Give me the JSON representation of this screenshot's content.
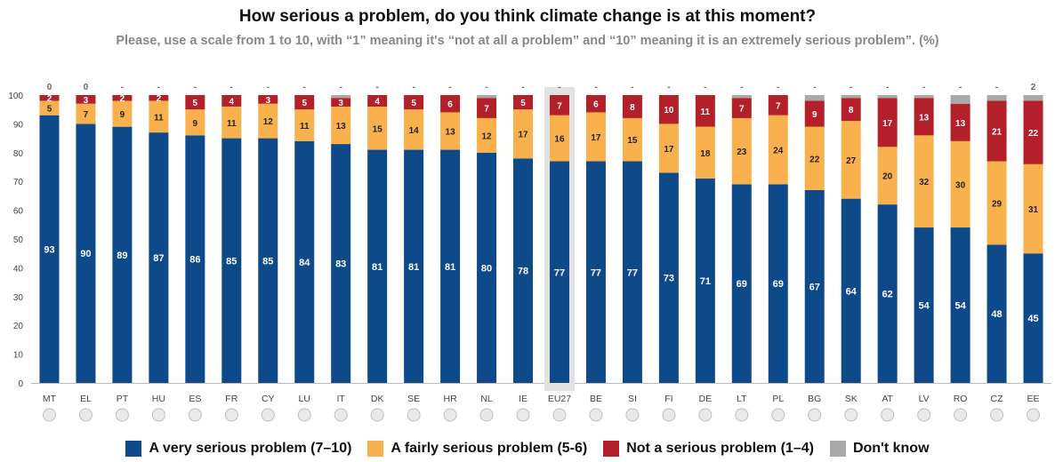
{
  "title": "How serious a problem, do you think climate change is at this moment?",
  "subtitle": "Please, use a scale from 1 to 10, with “1” meaning it's “not at all a problem” and “10” meaning it is an extremely serious problem”. (%)",
  "colors": {
    "very_serious": "#0e4a8a",
    "fairly_serious": "#f9b14e",
    "not_serious": "#b3202a",
    "dont_know": "#a9a9a9",
    "highlight": "#e2e2e2"
  },
  "legend": [
    {
      "label": "A very serious problem (7–10)",
      "color": "#0e4a8a"
    },
    {
      "label": "A fairly serious problem (5-6)",
      "color": "#f9b14e"
    },
    {
      "label": "Not a serious problem (1–4)",
      "color": "#b3202a"
    },
    {
      "label": "Don't know",
      "color": "#a9a9a9"
    }
  ],
  "chart_data": {
    "type": "bar",
    "stacked": true,
    "title": "How serious a problem, do you think climate change is at this moment?",
    "ylim": [
      0,
      100
    ],
    "yticks": [
      0,
      10,
      20,
      30,
      40,
      50,
      60,
      70,
      80,
      90,
      100
    ],
    "grid": false,
    "legend_position": "bottom",
    "highlight_category": "EU27",
    "categories": [
      "MT",
      "EL",
      "PT",
      "HU",
      "ES",
      "FR",
      "CY",
      "LU",
      "IT",
      "DK",
      "SE",
      "HR",
      "NL",
      "IE",
      "EU27",
      "BE",
      "SI",
      "FI",
      "DE",
      "LT",
      "PL",
      "BG",
      "SK",
      "AT",
      "LV",
      "RO",
      "CZ",
      "EE"
    ],
    "series": [
      {
        "name": "A very serious problem (7–10)",
        "values": [
          93,
          90,
          89,
          87,
          86,
          85,
          85,
          84,
          83,
          81,
          81,
          81,
          80,
          78,
          77,
          77,
          77,
          73,
          71,
          69,
          69,
          67,
          64,
          62,
          54,
          54,
          48,
          45
        ]
      },
      {
        "name": "A fairly serious problem (5-6)",
        "values": [
          5,
          7,
          9,
          11,
          9,
          11,
          12,
          11,
          13,
          15,
          14,
          13,
          12,
          17,
          16,
          17,
          15,
          17,
          18,
          23,
          24,
          22,
          27,
          20,
          32,
          30,
          29,
          31
        ]
      },
      {
        "name": "Not a serious problem (1–4)",
        "values": [
          2,
          3,
          2,
          2,
          5,
          4,
          3,
          5,
          3,
          4,
          5,
          6,
          7,
          5,
          7,
          6,
          8,
          10,
          11,
          7,
          7,
          9,
          8,
          17,
          13,
          13,
          21,
          22
        ]
      },
      {
        "name": "Don't know",
        "values": [
          0,
          0,
          0,
          0,
          0,
          0,
          0,
          0,
          1,
          0,
          0,
          0,
          1,
          0,
          0,
          0,
          0,
          0,
          0,
          1,
          0,
          2,
          1,
          1,
          1,
          3,
          2,
          2
        ]
      }
    ],
    "top_labels": [
      "0",
      "0",
      "-",
      "-",
      "-",
      "-",
      "-",
      "-",
      "-",
      "-",
      "-",
      "-",
      "-",
      "-",
      "-",
      "-",
      "-",
      "-",
      "-",
      "-",
      "-",
      "-",
      "-",
      "-",
      "-",
      "-",
      "-",
      "2"
    ]
  }
}
